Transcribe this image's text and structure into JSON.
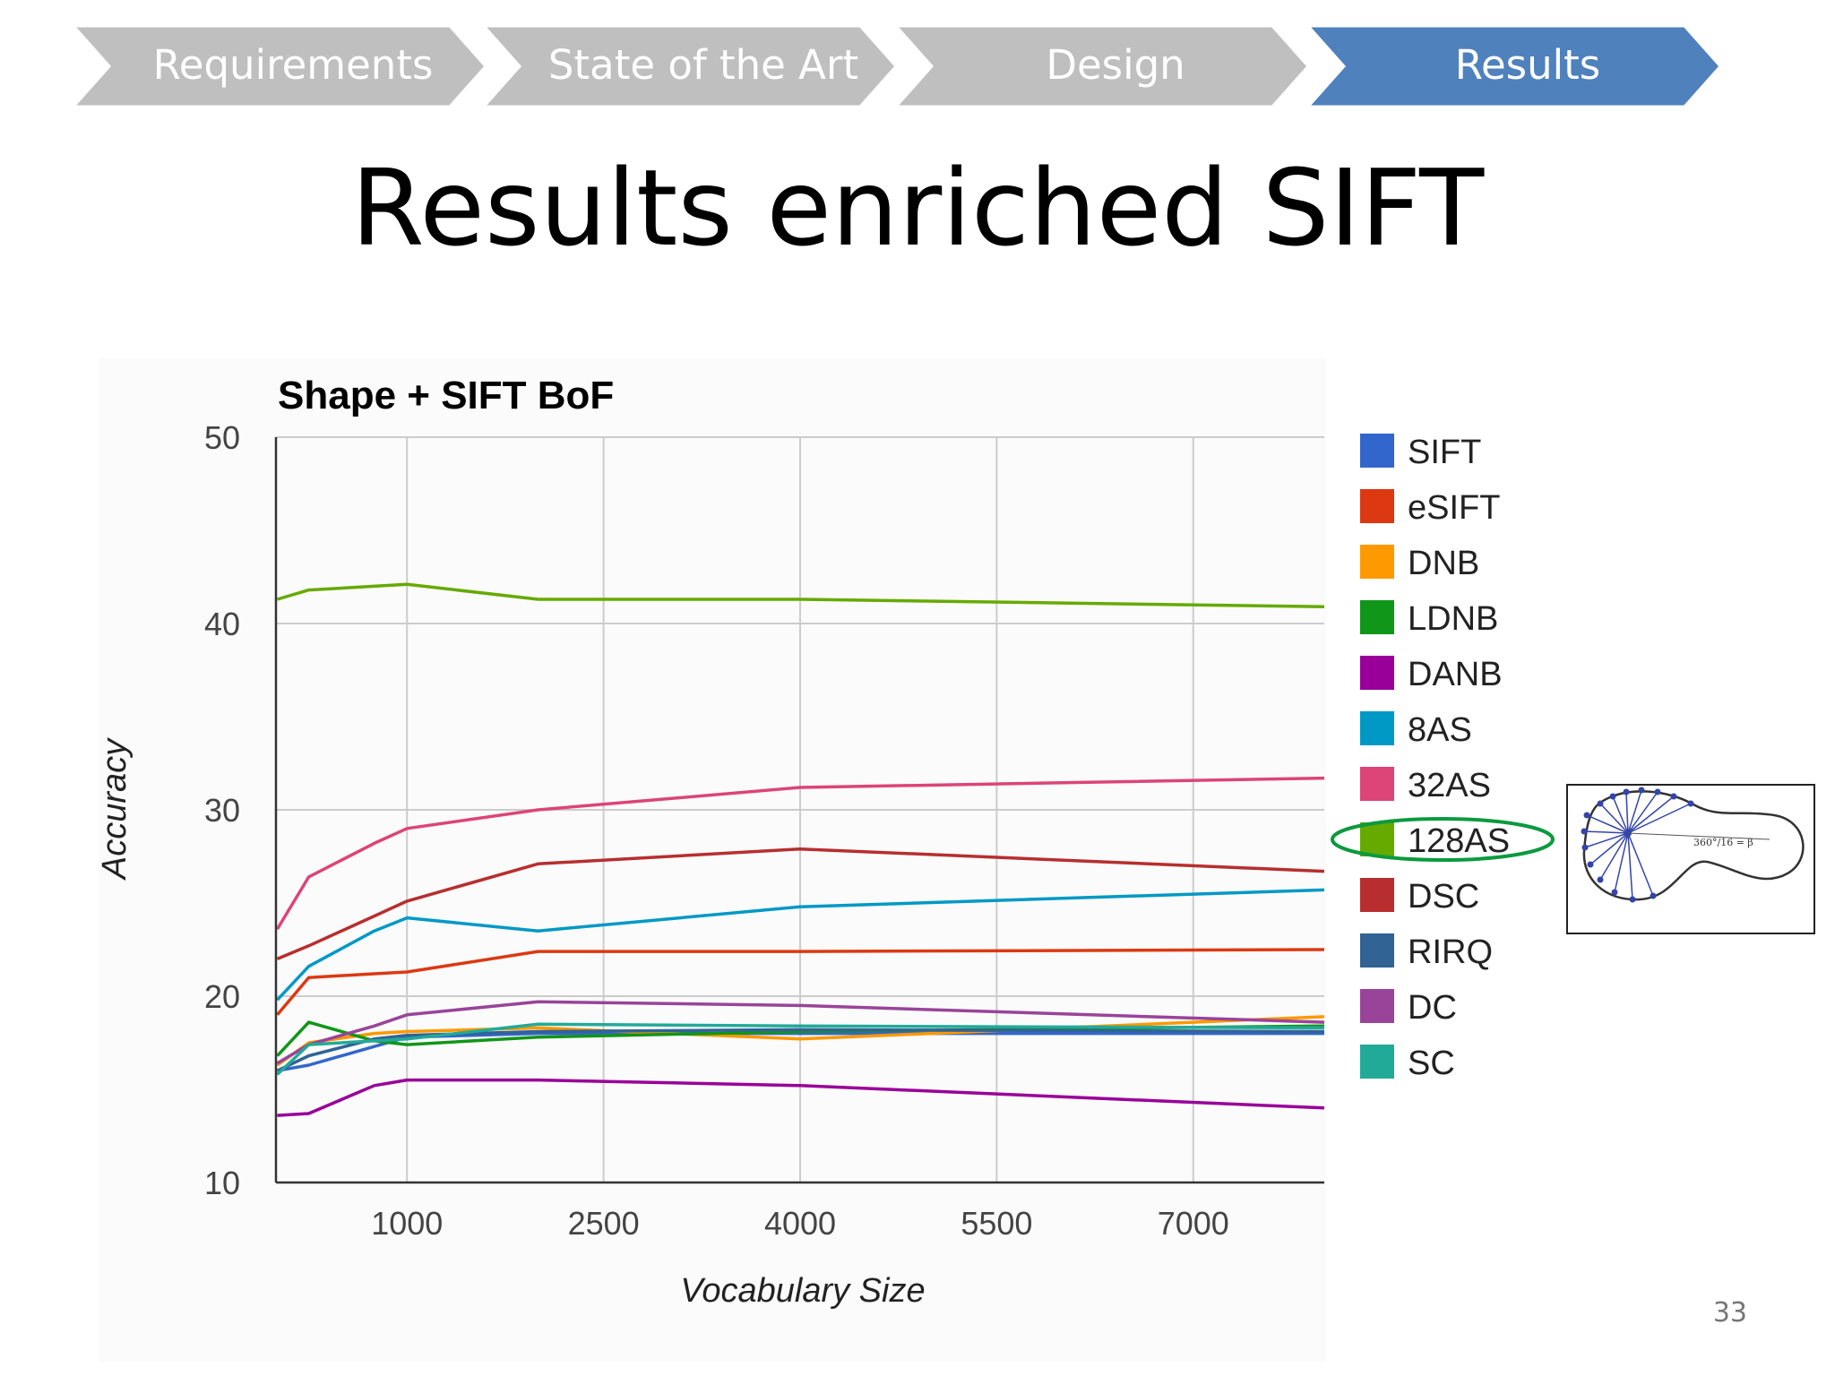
{
  "nav": {
    "steps": [
      {
        "label": "Requirements",
        "active": false
      },
      {
        "label": "State of the Art",
        "active": false
      },
      {
        "label": "Design",
        "active": false
      },
      {
        "label": "Results",
        "active": true
      }
    ],
    "inactive_color": "#bfbfbf",
    "active_color": "#4f81bd"
  },
  "slide": {
    "title": "Results enriched SIFT",
    "page_number": "33"
  },
  "colors": {
    "highlight_ellipse": "#0b9a3e",
    "grid": "#cccccc",
    "axis": "#333333"
  },
  "inset": {
    "icon": "shape-angle-sampling-icon",
    "label": "360°/16 = β"
  },
  "chart_data": {
    "type": "line",
    "title": "Shape + SIFT BoF",
    "xlabel": "Vocabulary Size",
    "ylabel": "Accuracy",
    "xlim": [
      0,
      8000
    ],
    "ylim": [
      10,
      50
    ],
    "x_ticks": [
      1000,
      2500,
      4000,
      5500,
      7000
    ],
    "y_ticks": [
      10,
      20,
      30,
      40,
      50
    ],
    "grid": true,
    "legend_position": "right",
    "highlighted_series": "128AS",
    "x": [
      10,
      250,
      750,
      1000,
      2000,
      4000,
      8000
    ],
    "series": [
      {
        "name": "SIFT",
        "color": "#3366cc",
        "values": [
          16.0,
          16.3,
          17.3,
          17.8,
          18.0,
          18.0,
          18.0
        ]
      },
      {
        "name": "eSIFT",
        "color": "#dc3912",
        "values": [
          19.0,
          21.0,
          21.2,
          21.3,
          22.4,
          22.4,
          22.5
        ]
      },
      {
        "name": "DNB",
        "color": "#ff9900",
        "values": [
          16.3,
          17.5,
          18.0,
          18.1,
          18.3,
          17.7,
          18.9
        ]
      },
      {
        "name": "LDNB",
        "color": "#109618",
        "values": [
          16.8,
          18.6,
          17.6,
          17.4,
          17.8,
          18.1,
          18.4
        ]
      },
      {
        "name": "DANB",
        "color": "#990099",
        "values": [
          13.6,
          13.7,
          15.2,
          15.5,
          15.5,
          15.2,
          14.0
        ]
      },
      {
        "name": "8AS",
        "color": "#0099c6",
        "values": [
          19.8,
          21.6,
          23.5,
          24.2,
          23.5,
          24.8,
          25.7
        ]
      },
      {
        "name": "32AS",
        "color": "#dd4477",
        "values": [
          23.6,
          26.4,
          28.2,
          29.0,
          30.0,
          31.2,
          31.7
        ]
      },
      {
        "name": "128AS",
        "color": "#66aa00",
        "values": [
          41.3,
          41.8,
          42.0,
          42.1,
          41.3,
          41.3,
          40.9
        ]
      },
      {
        "name": "DSC",
        "color": "#b82e2e",
        "values": [
          22.0,
          22.7,
          24.3,
          25.1,
          27.1,
          27.9,
          26.7
        ]
      },
      {
        "name": "RIRQ",
        "color": "#316395",
        "values": [
          16.0,
          16.8,
          17.7,
          17.9,
          18.1,
          18.2,
          18.1
        ]
      },
      {
        "name": "DC",
        "color": "#994499",
        "values": [
          16.4,
          17.4,
          18.4,
          19.0,
          19.7,
          19.5,
          18.6
        ]
      },
      {
        "name": "SC",
        "color": "#22aa99",
        "values": [
          15.8,
          17.4,
          17.6,
          17.7,
          18.5,
          18.4,
          18.3
        ]
      }
    ]
  }
}
